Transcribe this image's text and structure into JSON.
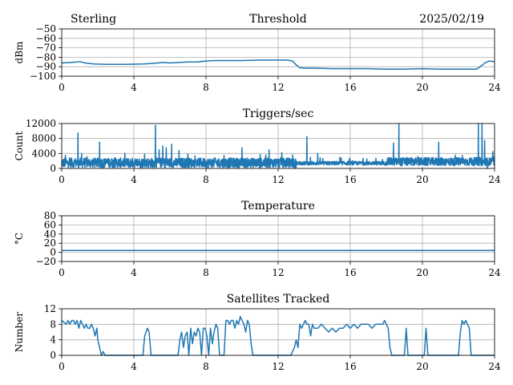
{
  "header": {
    "station": "Sterling",
    "date": "2025/02/19"
  },
  "colors": {
    "series": "#1f77b4",
    "grid": "#b0b0b0",
    "axis": "#000000"
  },
  "chart_data": [
    {
      "type": "line",
      "title": "Threshold",
      "xlabel": "",
      "ylabel": "dBm",
      "xlim": [
        0,
        24
      ],
      "ylim": [
        -100,
        -50
      ],
      "xticks": [
        0,
        4,
        8,
        12,
        16,
        20,
        24
      ],
      "yticks": [
        -100,
        -90,
        -80,
        -70,
        -60,
        -50
      ],
      "ytick_labels": [
        "−100",
        "−90",
        "−80",
        "−70",
        "−60",
        "−50"
      ],
      "grid": true,
      "x": [
        0,
        0.5,
        0.9,
        1.0,
        1.3,
        1.8,
        2.5,
        3.5,
        4.5,
        5.0,
        5.3,
        5.6,
        6.0,
        6.5,
        7.0,
        7.5,
        8.0,
        8.5,
        9.0,
        10.0,
        11.0,
        12.0,
        12.5,
        12.8,
        13.0,
        13.2,
        13.5,
        14.0,
        15.0,
        16.0,
        17.0,
        18.0,
        19.0,
        20.0,
        21.0,
        22.0,
        23.0,
        23.2,
        23.5,
        23.7,
        24.0
      ],
      "y": [
        -86,
        -85.5,
        -85,
        -84.5,
        -86,
        -87,
        -87.5,
        -87.5,
        -87,
        -86.5,
        -86,
        -85.5,
        -86,
        -85.5,
        -85,
        -85,
        -84,
        -83.5,
        -83.5,
        -83.5,
        -83,
        -83,
        -83,
        -84,
        -88,
        -91,
        -91.5,
        -91.5,
        -92,
        -92,
        -92,
        -92.5,
        -92.5,
        -92,
        -92.5,
        -92.5,
        -92.5,
        -90,
        -85.5,
        -84,
        -84.5
      ]
    },
    {
      "type": "line",
      "title": "Triggers/sec",
      "xlabel": "",
      "ylabel": "Count",
      "xlim": [
        0,
        24
      ],
      "ylim": [
        0,
        12000
      ],
      "xticks": [
        0,
        4,
        8,
        12,
        16,
        20,
        24
      ],
      "yticks": [
        0,
        4000,
        8000,
        12000
      ],
      "ytick_labels": [
        "0",
        "4000",
        "8000",
        "12000"
      ],
      "grid": true,
      "baseline_ranges": [
        {
          "x0": 0,
          "x1": 13,
          "low": 200,
          "high": 2800
        },
        {
          "x0": 13,
          "x1": 18,
          "low": 900,
          "high": 1900
        },
        {
          "x0": 18,
          "x1": 24,
          "low": 700,
          "high": 2900
        }
      ],
      "spikes": [
        {
          "x": 0.2,
          "y": 3500
        },
        {
          "x": 0.9,
          "y": 9500
        },
        {
          "x": 1.1,
          "y": 4000
        },
        {
          "x": 2.1,
          "y": 7000
        },
        {
          "x": 4.6,
          "y": 3800
        },
        {
          "x": 5.2,
          "y": 11500
        },
        {
          "x": 5.4,
          "y": 5000
        },
        {
          "x": 5.6,
          "y": 6000
        },
        {
          "x": 5.8,
          "y": 5500
        },
        {
          "x": 6.1,
          "y": 6500
        },
        {
          "x": 6.5,
          "y": 4800
        },
        {
          "x": 7.0,
          "y": 3800
        },
        {
          "x": 9.0,
          "y": 3500
        },
        {
          "x": 10.0,
          "y": 5500
        },
        {
          "x": 11.0,
          "y": 3700
        },
        {
          "x": 11.5,
          "y": 5000
        },
        {
          "x": 12.2,
          "y": 4200
        },
        {
          "x": 12.8,
          "y": 3600
        },
        {
          "x": 13.6,
          "y": 8500
        },
        {
          "x": 14.2,
          "y": 4000
        },
        {
          "x": 18.4,
          "y": 6800
        },
        {
          "x": 18.7,
          "y": 12000
        },
        {
          "x": 20.9,
          "y": 7000
        },
        {
          "x": 23.1,
          "y": 12000
        },
        {
          "x": 23.3,
          "y": 12000
        },
        {
          "x": 23.45,
          "y": 7500
        },
        {
          "x": 23.9,
          "y": 4500
        }
      ],
      "dips": [
        {
          "x": 12.9,
          "y": 0
        },
        {
          "x": 23.6,
          "y": 0
        }
      ]
    },
    {
      "type": "line",
      "title": "Temperature",
      "xlabel": "",
      "ylabel": "°C",
      "xlim": [
        0,
        24
      ],
      "ylim": [
        -20,
        80
      ],
      "xticks": [
        0,
        4,
        8,
        12,
        16,
        20,
        24
      ],
      "yticks": [
        -20,
        0,
        20,
        40,
        60,
        80
      ],
      "ytick_labels": [
        "−20",
        "0",
        "20",
        "40",
        "60",
        "80"
      ],
      "grid": true,
      "x": [
        0,
        24
      ],
      "y": [
        4,
        4
      ]
    },
    {
      "type": "line",
      "title": "Satellites Tracked",
      "xlabel": "",
      "ylabel": "Number",
      "xlim": [
        0,
        24
      ],
      "ylim": [
        0,
        12
      ],
      "xticks": [
        0,
        4,
        8,
        12,
        16,
        20,
        24
      ],
      "yticks": [
        0,
        4,
        8,
        12
      ],
      "ytick_labels": [
        "0",
        "4",
        "8",
        "12"
      ],
      "grid": true,
      "x": [
        0,
        0.25,
        0.35,
        0.45,
        0.55,
        0.65,
        0.75,
        0.85,
        0.95,
        1.05,
        1.15,
        1.25,
        1.35,
        1.45,
        1.55,
        1.65,
        1.75,
        1.85,
        1.95,
        2.0,
        2.1,
        2.2,
        2.3,
        2.4,
        4.5,
        4.6,
        4.75,
        4.85,
        4.95,
        6.45,
        6.55,
        6.65,
        6.75,
        6.85,
        6.95,
        7.05,
        7.15,
        7.25,
        7.35,
        7.45,
        7.55,
        7.65,
        7.75,
        7.85,
        7.95,
        8.05,
        8.15,
        8.25,
        8.35,
        8.45,
        8.55,
        8.65,
        8.75,
        9.0,
        9.1,
        9.2,
        9.3,
        9.4,
        9.5,
        9.6,
        9.7,
        9.8,
        9.9,
        10.0,
        10.1,
        10.2,
        10.3,
        10.4,
        10.5,
        10.6,
        12.7,
        12.8,
        12.9,
        13.0,
        13.1,
        13.2,
        13.3,
        13.4,
        13.5,
        13.6,
        13.7,
        13.8,
        13.9,
        14.0,
        14.2,
        14.4,
        14.6,
        14.8,
        15.0,
        15.2,
        15.4,
        15.6,
        15.8,
        16.0,
        16.2,
        16.4,
        16.6,
        16.8,
        17.0,
        17.2,
        17.4,
        17.6,
        17.8,
        17.9,
        18.0,
        18.1,
        18.2,
        18.3,
        19.0,
        19.1,
        19.2,
        19.3,
        20.1,
        20.2,
        20.3,
        20.4,
        22.0,
        22.1,
        22.2,
        22.3,
        22.4,
        22.5,
        22.6,
        22.7,
        24.0
      ],
      "y": [
        9,
        8,
        9,
        8,
        9,
        9,
        8,
        9,
        7,
        9,
        8,
        7,
        8,
        7,
        7,
        8,
        7,
        5,
        7,
        4,
        2,
        0,
        1,
        0,
        0,
        5,
        7,
        6,
        0,
        0,
        4,
        6,
        2,
        5,
        6,
        0,
        7,
        3,
        6,
        5,
        7,
        6,
        0,
        7,
        7,
        5,
        0,
        7,
        3,
        6,
        8,
        7,
        0,
        0,
        9,
        9,
        8,
        9,
        9,
        7,
        9,
        8,
        10,
        9,
        8,
        6,
        9,
        8,
        3,
        0,
        0,
        1,
        2,
        4,
        2,
        8,
        7,
        8,
        9,
        8,
        8,
        5,
        8,
        7,
        7,
        8,
        7,
        6,
        7,
        6,
        7,
        7,
        8,
        7,
        8,
        7,
        8,
        8,
        8,
        7,
        8,
        8,
        8,
        9,
        8,
        7,
        2,
        0,
        0,
        7,
        0,
        0,
        0,
        7,
        0,
        0,
        0,
        6,
        9,
        8,
        9,
        8,
        7,
        0,
        0
      ]
    }
  ]
}
